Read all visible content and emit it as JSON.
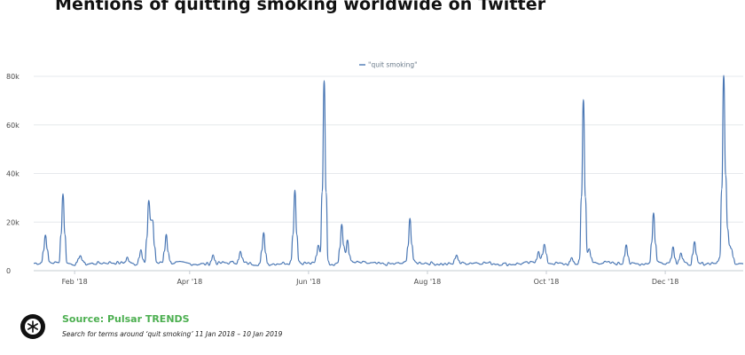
{
  "header": {
    "title": "Mentions of quitting smoking worldwide on Twitter"
  },
  "footer": {
    "source": "Source: Pulsar TRENDS",
    "subtitle": "Search for terms around ‘quit smoking’ 11 Jan 2018 – 10 Jan 2019"
  },
  "chart_data": {
    "type": "line",
    "title": "Mentions of quitting smoking worldwide on Twitter",
    "ylim": [
      0,
      80000
    ],
    "y_ticks": [
      {
        "value": 0,
        "label": "0"
      },
      {
        "value": 20000,
        "label": "20k"
      },
      {
        "value": 40000,
        "label": "40k"
      },
      {
        "value": 60000,
        "label": "60k"
      },
      {
        "value": 80000,
        "label": "80k"
      }
    ],
    "x_range": [
      "2018-01-11",
      "2019-01-10"
    ],
    "x_ticks": [
      {
        "date": "2018-02-01",
        "label": "Feb '18"
      },
      {
        "date": "2018-04-01",
        "label": "Apr '18"
      },
      {
        "date": "2018-06-01",
        "label": "Jun '18"
      },
      {
        "date": "2018-08-01",
        "label": "Aug '18"
      },
      {
        "date": "2018-10-01",
        "label": "Oct '18"
      },
      {
        "date": "2018-12-01",
        "label": "Dec '18"
      }
    ],
    "grid": true,
    "legend_position": "top-center",
    "baseline": 3000,
    "series": [
      {
        "name": "\"quit smoking\"",
        "color": "#4a77b4",
        "peaks": [
          {
            "date": "2018-01-17",
            "value": 15000
          },
          {
            "date": "2018-01-26",
            "value": 32000
          },
          {
            "date": "2018-02-04",
            "value": 7000
          },
          {
            "date": "2018-02-28",
            "value": 5500
          },
          {
            "date": "2018-03-07",
            "value": 9500
          },
          {
            "date": "2018-03-11",
            "value": 28500
          },
          {
            "date": "2018-03-13",
            "value": 20500
          },
          {
            "date": "2018-03-20",
            "value": 15000
          },
          {
            "date": "2018-04-13",
            "value": 6500
          },
          {
            "date": "2018-04-27",
            "value": 7500
          },
          {
            "date": "2018-05-09",
            "value": 15500
          },
          {
            "date": "2018-05-25",
            "value": 33000
          },
          {
            "date": "2018-06-06",
            "value": 11000
          },
          {
            "date": "2018-06-09",
            "value": 78000
          },
          {
            "date": "2018-06-18",
            "value": 19000
          },
          {
            "date": "2018-06-21",
            "value": 12500
          },
          {
            "date": "2018-07-23",
            "value": 21500
          },
          {
            "date": "2018-08-16",
            "value": 7000
          },
          {
            "date": "2018-09-27",
            "value": 8000
          },
          {
            "date": "2018-09-30",
            "value": 10500
          },
          {
            "date": "2018-10-14",
            "value": 5000
          },
          {
            "date": "2018-10-20",
            "value": 71000
          },
          {
            "date": "2018-10-23",
            "value": 8500
          },
          {
            "date": "2018-11-11",
            "value": 11500
          },
          {
            "date": "2018-11-25",
            "value": 23500
          },
          {
            "date": "2018-12-05",
            "value": 9500
          },
          {
            "date": "2018-12-09",
            "value": 7500
          },
          {
            "date": "2018-12-16",
            "value": 11500
          },
          {
            "date": "2018-12-31",
            "value": 79500
          },
          {
            "date": "2019-01-02",
            "value": 15500
          },
          {
            "date": "2019-01-04",
            "value": 9000
          }
        ]
      }
    ]
  }
}
